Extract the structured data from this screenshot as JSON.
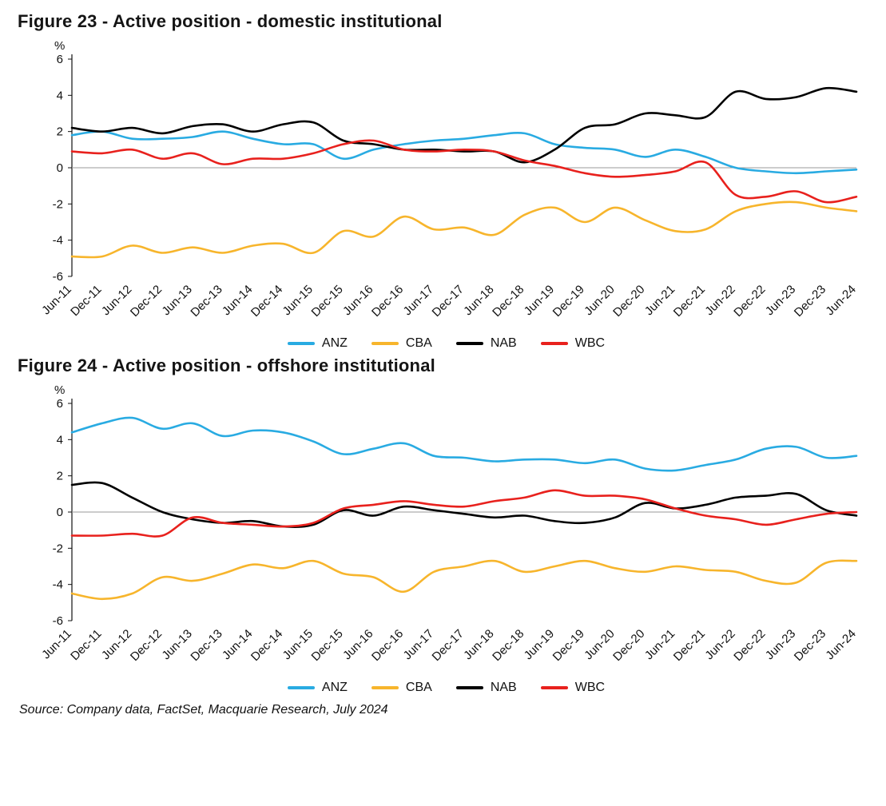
{
  "source_note": "Source: Company data, FactSet, Macquarie Research, July 2024",
  "chart_data": [
    {
      "type": "line",
      "title": "Figure 23 - Active position - domestic institutional",
      "xlabel": "",
      "ylabel": "%",
      "ylim": [
        -6,
        6
      ],
      "ytick_step": 2,
      "grid": false,
      "zero_line": true,
      "legend_position": "bottom",
      "categories": [
        "Jun-11",
        "Dec-11",
        "Jun-12",
        "Dec-12",
        "Jun-13",
        "Dec-13",
        "Jun-14",
        "Dec-14",
        "Jun-15",
        "Dec-15",
        "Jun-16",
        "Dec-16",
        "Jun-17",
        "Dec-17",
        "Jun-18",
        "Dec-18",
        "Jun-19",
        "Dec-19",
        "Jun-20",
        "Dec-20",
        "Jun-21",
        "Dec-21",
        "Jun-22",
        "Dec-22",
        "Jun-23",
        "Dec-23",
        "Jun-24"
      ],
      "series": [
        {
          "name": "ANZ",
          "color": "#29abe2",
          "values": [
            1.8,
            2.0,
            1.6,
            1.6,
            1.7,
            2.0,
            1.6,
            1.3,
            1.3,
            0.5,
            1.0,
            1.3,
            1.5,
            1.6,
            1.8,
            1.9,
            1.3,
            1.1,
            1.0,
            0.6,
            1.0,
            0.6,
            0.0,
            -0.2,
            -0.3,
            -0.2,
            -0.1
          ]
        },
        {
          "name": "CBA",
          "color": "#f7b52c",
          "values": [
            -4.9,
            -4.9,
            -4.3,
            -4.7,
            -4.4,
            -4.7,
            -4.3,
            -4.2,
            -4.7,
            -3.5,
            -3.8,
            -2.7,
            -3.4,
            -3.3,
            -3.7,
            -2.6,
            -2.2,
            -3.0,
            -2.2,
            -2.9,
            -3.5,
            -3.4,
            -2.4,
            -2.0,
            -1.9,
            -2.2,
            -2.4
          ]
        },
        {
          "name": "NAB",
          "color": "#000000",
          "values": [
            2.2,
            2.0,
            2.2,
            1.9,
            2.3,
            2.4,
            2.0,
            2.4,
            2.5,
            1.5,
            1.3,
            1.0,
            1.0,
            0.9,
            0.9,
            0.3,
            1.0,
            2.2,
            2.4,
            3.0,
            2.9,
            2.8,
            4.2,
            3.8,
            3.9,
            4.4,
            4.2
          ]
        },
        {
          "name": "WBC",
          "color": "#e8211d",
          "values": [
            0.9,
            0.8,
            1.0,
            0.5,
            0.8,
            0.2,
            0.5,
            0.5,
            0.8,
            1.3,
            1.5,
            1.0,
            0.9,
            1.0,
            0.9,
            0.4,
            0.1,
            -0.3,
            -0.5,
            -0.4,
            -0.2,
            0.3,
            -1.5,
            -1.6,
            -1.3,
            -1.9,
            -1.6
          ]
        }
      ]
    },
    {
      "type": "line",
      "title": "Figure 24 - Active position - offshore institutional",
      "xlabel": "",
      "ylabel": "%",
      "ylim": [
        -6,
        6
      ],
      "ytick_step": 2,
      "grid": false,
      "zero_line": true,
      "legend_position": "bottom",
      "categories": [
        "Jun-11",
        "Dec-11",
        "Jun-12",
        "Dec-12",
        "Jun-13",
        "Dec-13",
        "Jun-14",
        "Dec-14",
        "Jun-15",
        "Dec-15",
        "Jun-16",
        "Dec-16",
        "Jun-17",
        "Dec-17",
        "Jun-18",
        "Dec-18",
        "Jun-19",
        "Dec-19",
        "Jun-20",
        "Dec-20",
        "Jun-21",
        "Dec-21",
        "Jun-22",
        "Dec-22",
        "Jun-23",
        "Dec-23",
        "Jun-24"
      ],
      "series": [
        {
          "name": "ANZ",
          "color": "#29abe2",
          "values": [
            4.4,
            4.9,
            5.2,
            4.6,
            4.9,
            4.2,
            4.5,
            4.4,
            3.9,
            3.2,
            3.5,
            3.8,
            3.1,
            3.0,
            2.8,
            2.9,
            2.9,
            2.7,
            2.9,
            2.4,
            2.3,
            2.6,
            2.9,
            3.5,
            3.6,
            3.0,
            3.1
          ]
        },
        {
          "name": "CBA",
          "color": "#f7b52c",
          "values": [
            -4.5,
            -4.8,
            -4.5,
            -3.6,
            -3.8,
            -3.4,
            -2.9,
            -3.1,
            -2.7,
            -3.4,
            -3.6,
            -4.4,
            -3.3,
            -3.0,
            -2.7,
            -3.3,
            -3.0,
            -2.7,
            -3.1,
            -3.3,
            -3.0,
            -3.2,
            -3.3,
            -3.8,
            -3.9,
            -2.8,
            -2.7
          ]
        },
        {
          "name": "NAB",
          "color": "#000000",
          "values": [
            1.5,
            1.6,
            0.8,
            0.0,
            -0.4,
            -0.6,
            -0.5,
            -0.8,
            -0.7,
            0.1,
            -0.2,
            0.3,
            0.1,
            -0.1,
            -0.3,
            -0.2,
            -0.5,
            -0.6,
            -0.3,
            0.5,
            0.2,
            0.4,
            0.8,
            0.9,
            1.0,
            0.1,
            -0.2
          ]
        },
        {
          "name": "WBC",
          "color": "#e8211d",
          "values": [
            -1.3,
            -1.3,
            -1.2,
            -1.3,
            -0.3,
            -0.6,
            -0.7,
            -0.8,
            -0.6,
            0.2,
            0.4,
            0.6,
            0.4,
            0.3,
            0.6,
            0.8,
            1.2,
            0.9,
            0.9,
            0.7,
            0.2,
            -0.2,
            -0.4,
            -0.7,
            -0.4,
            -0.1,
            0.0
          ]
        }
      ]
    }
  ]
}
